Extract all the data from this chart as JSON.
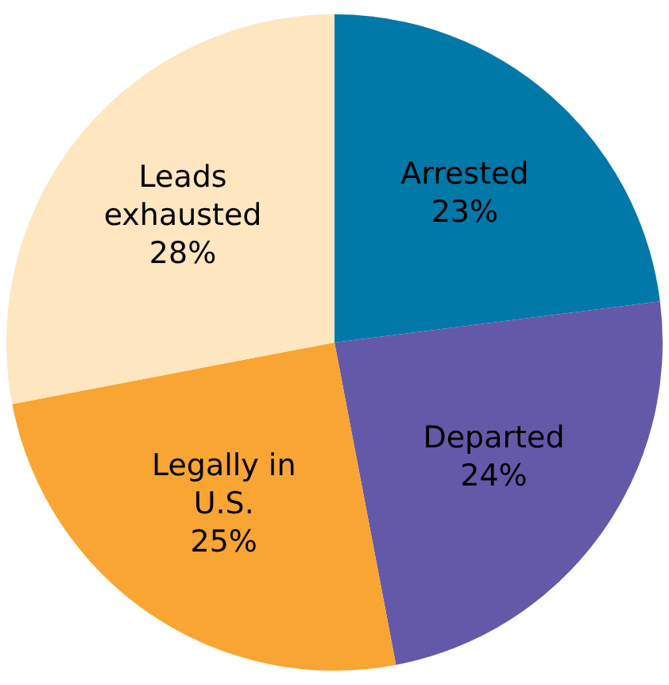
{
  "chart_data": {
    "type": "pie",
    "categories": [
      "Arrested",
      "Departed",
      "Legally in U.S.",
      "Leads exhausted"
    ],
    "values": [
      23,
      24,
      25,
      28
    ],
    "colors": [
      "#0079a8",
      "#6459a8",
      "#f9a533",
      "#fde6c0"
    ],
    "value_labels": [
      "23%",
      "24%",
      "25%",
      "28%"
    ],
    "legend": false
  }
}
